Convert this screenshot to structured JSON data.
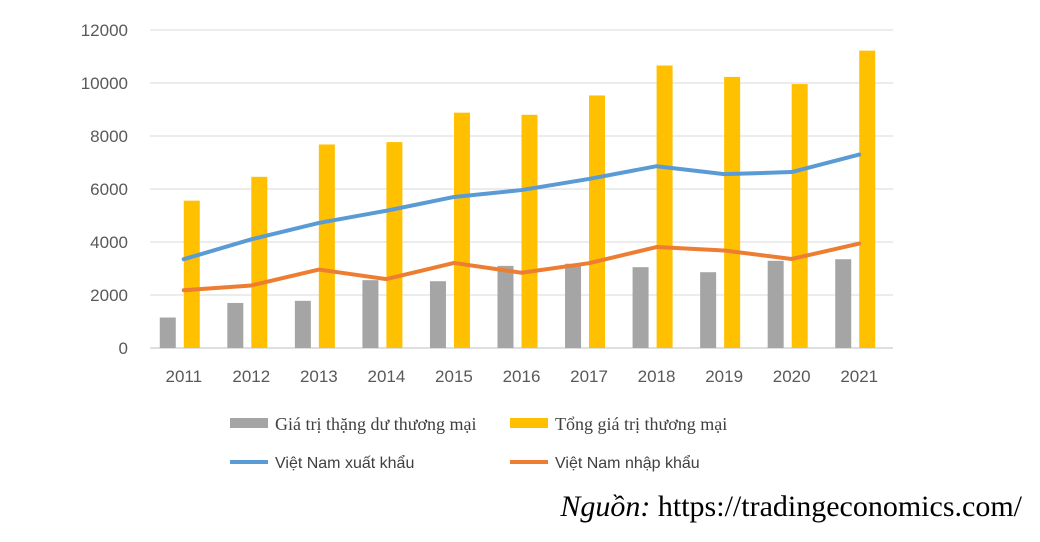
{
  "chart_data": {
    "type": "bar",
    "categories": [
      "2011",
      "2012",
      "2013",
      "2014",
      "2015",
      "2016",
      "2017",
      "2018",
      "2019",
      "2020",
      "2021"
    ],
    "ylim": [
      0,
      12000
    ],
    "yticks": [
      0,
      2000,
      4000,
      6000,
      8000,
      10000,
      12000
    ],
    "grid": true,
    "legend_position": "bottom",
    "series": [
      {
        "name": "Giá trị thặng dư thương mại",
        "kind": "bar",
        "color": "#a5a5a5",
        "values": [
          1150,
          1700,
          1780,
          2560,
          2520,
          3100,
          3180,
          3050,
          2860,
          3290,
          3350
        ]
      },
      {
        "name": "Tổng giá trị thương mại",
        "kind": "bar",
        "color": "#ffc000",
        "values": [
          5560,
          6460,
          7680,
          7770,
          8880,
          8800,
          9530,
          10660,
          10230,
          9960,
          11220
        ]
      },
      {
        "name": "Việt Nam xuất khẩu",
        "kind": "line",
        "color": "#5b9bd5",
        "values": [
          3350,
          4100,
          4720,
          5180,
          5700,
          5960,
          6380,
          6860,
          6560,
          6640,
          7300
        ]
      },
      {
        "name": "Việt Nam nhập khẩu",
        "kind": "line",
        "color": "#ed7d31",
        "values": [
          2180,
          2360,
          2960,
          2600,
          3210,
          2840,
          3200,
          3810,
          3680,
          3360,
          3940
        ]
      }
    ]
  },
  "source": {
    "label": "Nguồn:",
    "url": "https://tradingeconomics.com/"
  }
}
